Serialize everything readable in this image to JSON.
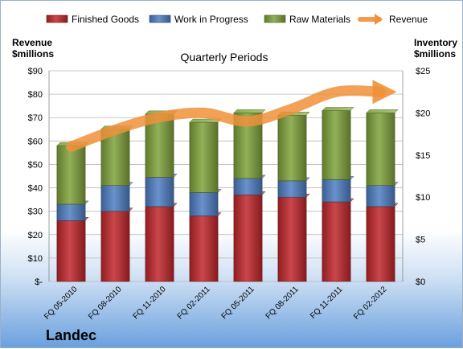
{
  "company": "Landec",
  "chart_data": {
    "type": "bar",
    "stacked": true,
    "title": "Quarterly Periods",
    "categories": [
      "FQ 05-2010",
      "FQ 08-2010",
      "FQ 11-2010",
      "FQ 02-2011",
      "FQ 05-2011",
      "FQ 08-2011",
      "FQ 11-2011",
      "FQ 02-2012"
    ],
    "series": [
      {
        "name": "Finished Goods",
        "color": "#c0262b",
        "values": [
          26,
          30,
          32,
          28,
          37,
          36,
          34,
          32
        ]
      },
      {
        "name": "Work in Progress",
        "color": "#4f7ec2",
        "values": [
          7,
          11,
          12.5,
          10,
          7,
          7,
          9.5,
          9
        ]
      },
      {
        "name": "Raw Materials",
        "color": "#7fa23b",
        "values": [
          25,
          24,
          27,
          30,
          28,
          28,
          29.5,
          31
        ]
      }
    ],
    "line_series": {
      "name": "Revenue",
      "color": "#f0903a",
      "values": [
        16,
        18,
        19.5,
        20,
        19,
        20.5,
        22.5,
        22.5
      ]
    },
    "left_axis": {
      "label_line1": "Revenue",
      "label_line2": "$millions",
      "ylim": [
        0,
        90
      ],
      "ticks": [
        "$-",
        "$10",
        "$20",
        "$30",
        "$40",
        "$50",
        "$60",
        "$70",
        "$80",
        "$90"
      ]
    },
    "right_axis": {
      "label_line1": "Inventory",
      "label_line2": "$millions",
      "ylim": [
        0,
        25
      ],
      "ticks": [
        "$0",
        "$5",
        "$10",
        "$15",
        "$20",
        "$25"
      ]
    },
    "grid": true,
    "legend_position": "top"
  }
}
